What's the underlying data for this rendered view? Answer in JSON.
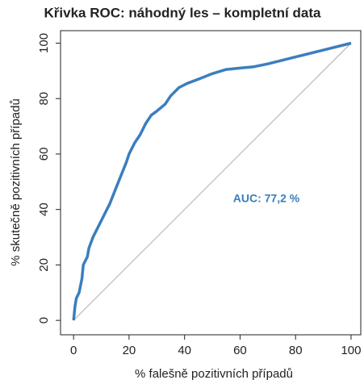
{
  "chart_data": {
    "type": "line",
    "title": "Křivka ROC: náhodný les – kompletní data",
    "xlabel": "% falešně pozitivních případů",
    "ylabel": "% skutečně pozitivních případů",
    "annotation": "AUC: 77,2 %",
    "x": [
      0,
      0.5,
      1,
      2,
      3,
      3.5,
      5,
      5.5,
      7,
      9,
      11,
      13,
      15,
      17,
      19,
      20,
      22,
      24,
      26,
      28,
      30,
      33,
      35,
      38,
      41,
      45,
      50,
      55,
      60,
      65,
      70,
      80,
      90,
      100
    ],
    "series": [
      {
        "name": "ROC",
        "color": "#3a7ebf",
        "values": [
          0,
          5,
          8,
          10,
          15,
          20,
          23,
          26,
          30,
          34,
          38,
          42,
          47,
          52,
          57,
          60,
          64,
          67,
          71,
          74,
          75.5,
          78,
          81,
          84,
          85.5,
          87,
          89,
          90.5,
          91,
          91.5,
          92.5,
          95,
          97.5,
          100
        ]
      }
    ],
    "xlim": [
      -4.7,
      103.5
    ],
    "ylim": [
      -5.2,
      104.5
    ],
    "xticks": [
      0,
      20,
      40,
      60,
      80,
      100
    ],
    "yticks": [
      0,
      20,
      40,
      60,
      80,
      100
    ]
  }
}
